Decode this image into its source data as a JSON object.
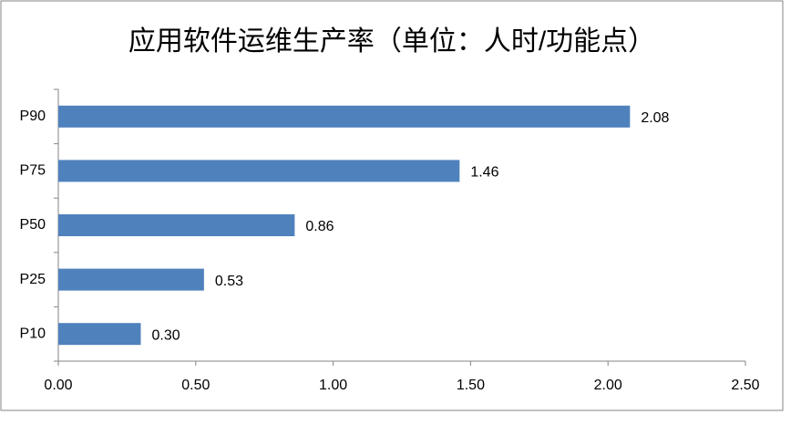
{
  "chart_data": {
    "type": "bar",
    "orientation": "horizontal",
    "title": "应用软件运维生产率（单位：人时/功能点）",
    "categories": [
      "P90",
      "P75",
      "P50",
      "P25",
      "P10"
    ],
    "values": [
      2.08,
      1.46,
      0.86,
      0.53,
      0.3
    ],
    "value_labels": [
      "2.08",
      "1.46",
      "0.86",
      "0.53",
      "0.30"
    ],
    "color": "#4f81bd",
    "xlim": [
      0,
      2.5
    ],
    "xticks": [
      {
        "value": 0,
        "label": "0.00"
      },
      {
        "value": 0.5,
        "label": "0.50"
      },
      {
        "value": 1,
        "label": "1.00"
      },
      {
        "value": 1.5,
        "label": "1.50"
      },
      {
        "value": 2,
        "label": "2.00"
      },
      {
        "value": 2.5,
        "label": "2.50"
      }
    ],
    "grid": false
  }
}
